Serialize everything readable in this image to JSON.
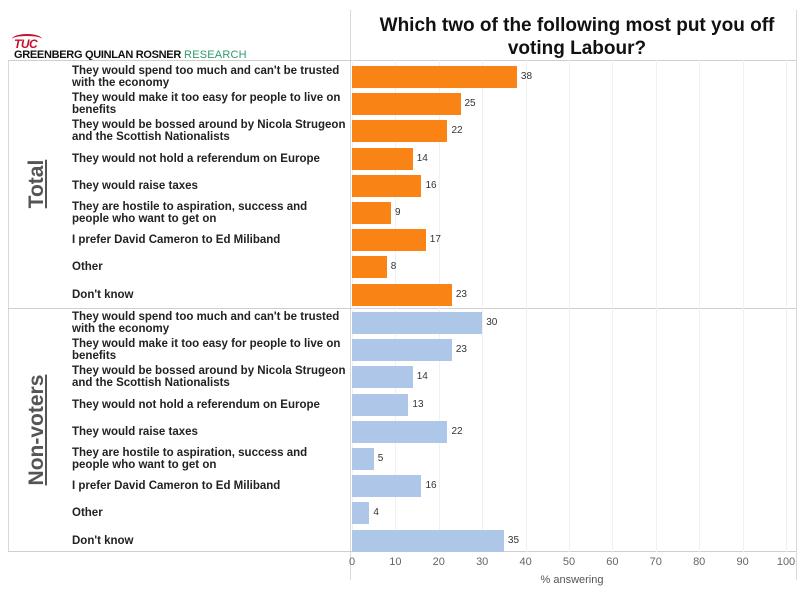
{
  "title": "Which two of the following most put you off voting Labour?",
  "logo": {
    "tuc": "TUC",
    "gqr_bold": "GREENBERG QUINLAN ROSNER",
    "gqr_light": "RESEARCH"
  },
  "chart_data": {
    "type": "bar",
    "orientation": "horizontal",
    "title": "Which two of the following most put you off voting Labour?",
    "xlabel": "% answering",
    "xlim": [
      0,
      100
    ],
    "xticks": [
      "0",
      "10",
      "20",
      "30",
      "40",
      "50",
      "60",
      "70",
      "80",
      "90",
      "100"
    ],
    "categories": [
      "They would spend too much and can't be trusted with the economy",
      "They would make it too easy for people to live on benefits",
      "They would be bossed around by Nicola Strugeon and the Scottish Nationalists",
      "They would not hold a referendum on Europe",
      "They would raise taxes",
      "They are hostile to aspiration, success and people who want to get on",
      "I prefer David Cameron to Ed Miliband",
      "Other",
      "Don't know"
    ],
    "series": [
      {
        "name": "Total",
        "color": "#f98315",
        "values": [
          38,
          25,
          22,
          14,
          16,
          9,
          17,
          8,
          23
        ]
      },
      {
        "name": "Non-voters",
        "color": "#aec7e8",
        "values": [
          30,
          23,
          14,
          13,
          22,
          5,
          16,
          4,
          35
        ]
      }
    ]
  }
}
